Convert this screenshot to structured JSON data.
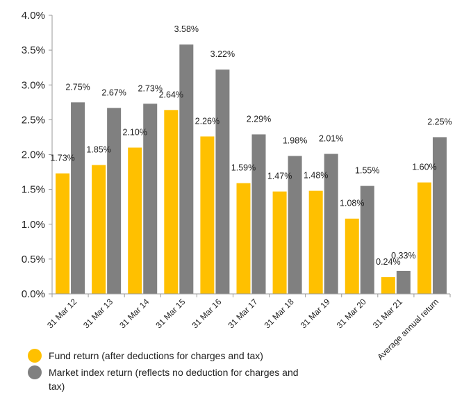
{
  "chart_data": {
    "type": "bar",
    "categories": [
      "31 Mar 12",
      "31 Mar 13",
      "31 Mar 14",
      "31 Mar 15",
      "31 Mar 16",
      "31 Mar 17",
      "31 Mar 18",
      "31 Mar 19",
      "31 Mar 20",
      "31 Mar 21",
      "Average annual return"
    ],
    "series": [
      {
        "name": "Fund return (after deductions for charges and tax)",
        "color": "#FFC000",
        "values": [
          1.73,
          1.85,
          2.1,
          2.64,
          2.26,
          1.59,
          1.47,
          1.48,
          1.08,
          0.24,
          1.6
        ],
        "labels": [
          "1.73%",
          "1.85%",
          "2.10%",
          "2.64%",
          "2.26%",
          "1.59%",
          "1.47%",
          "1.48%",
          "1.08%",
          "0.24%",
          "1.60%"
        ]
      },
      {
        "name": "Market index return (reflects no deduction for charges and tax)",
        "color": "#808080",
        "values": [
          2.75,
          2.67,
          2.73,
          3.58,
          3.22,
          2.29,
          1.98,
          2.01,
          1.55,
          0.33,
          2.25
        ],
        "labels": [
          "2.75%",
          "2.67%",
          "2.73%",
          "3.58%",
          "3.22%",
          "2.29%",
          "1.98%",
          "2.01%",
          "1.55%",
          "0.33%",
          "2.25%"
        ]
      }
    ],
    "ylim": [
      0,
      4.0
    ],
    "yticks": [
      0,
      0.5,
      1.0,
      1.5,
      2.0,
      2.5,
      3.0,
      3.5,
      4.0
    ],
    "ytick_labels": [
      "0.0%",
      "0.5%",
      "1.0%",
      "1.5%",
      "2.0%",
      "2.5%",
      "3.0%",
      "3.5%",
      "4.0%"
    ],
    "grid": false,
    "legend_position": "bottom-left"
  }
}
